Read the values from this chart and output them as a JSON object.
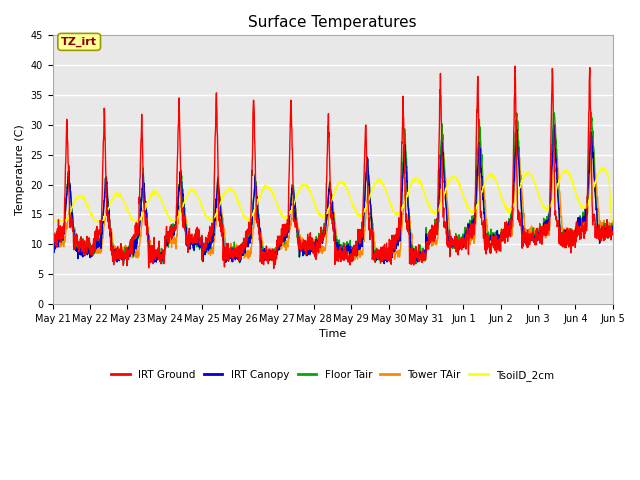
{
  "title": "Surface Temperatures",
  "xlabel": "Time",
  "ylabel": "Temperature (C)",
  "ylim": [
    0,
    45
  ],
  "yticks": [
    0,
    5,
    10,
    15,
    20,
    25,
    30,
    35,
    40,
    45
  ],
  "x_labels": [
    "May 21",
    "May 22",
    "May 23",
    "May 24",
    "May 25",
    "May 26",
    "May 27",
    "May 28",
    "May 29",
    "May 30",
    "May 31",
    "Jun 1",
    "Jun 2",
    "Jun 3",
    "Jun 4",
    "Jun 5"
  ],
  "annotation_text": "TZ_irt",
  "annotation_color": "#880000",
  "annotation_bg": "#ffff99",
  "annotation_border": "#999900",
  "series_colors": {
    "IRT Ground": "#ff0000",
    "IRT Canopy": "#0000cc",
    "Floor Tair": "#00aa00",
    "Tower TAir": "#ff8800",
    "TsoilD_2cm": "#ffff00"
  },
  "background_color": "#e8e8e8",
  "grid_color": "#ffffff",
  "title_fontsize": 11,
  "tick_fontsize": 7,
  "label_fontsize": 8
}
